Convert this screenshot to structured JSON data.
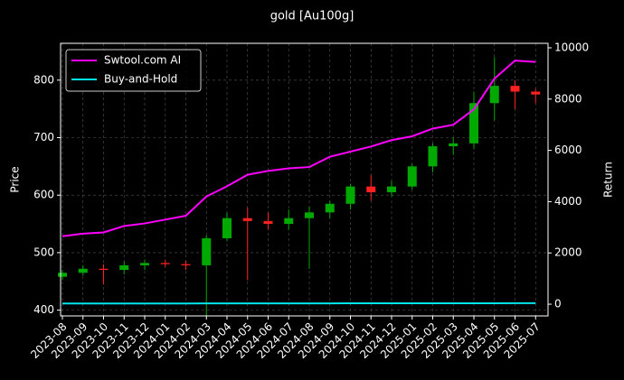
{
  "chart_data": {
    "type": "candlestick",
    "title": "gold [Au100g]",
    "y_label": "Price",
    "y2_label": "Return",
    "x": [
      "2023-08",
      "2023-09",
      "2023-10",
      "2023-11",
      "2023-12",
      "2024-01",
      "2024-02",
      "2024-03",
      "2024-04",
      "2024-05",
      "2024-06",
      "2024-07",
      "2024-08",
      "2024-09",
      "2024-10",
      "2024-11",
      "2024-12",
      "2025-01",
      "2025-02",
      "2025-03",
      "2025-04",
      "2025-05",
      "2025-06",
      "2025-07"
    ],
    "open": [
      458,
      465,
      472,
      470,
      478,
      482,
      480,
      478,
      525,
      560,
      555,
      550,
      560,
      570,
      585,
      615,
      605,
      615,
      650,
      685,
      690,
      760,
      790,
      780
    ],
    "high": [
      470,
      478,
      480,
      485,
      488,
      488,
      486,
      530,
      570,
      578,
      570,
      575,
      580,
      590,
      620,
      635,
      625,
      655,
      690,
      700,
      780,
      840,
      800,
      785
    ],
    "low": [
      452,
      460,
      445,
      462,
      470,
      475,
      470,
      390,
      520,
      452,
      540,
      540,
      472,
      560,
      575,
      590,
      598,
      610,
      640,
      670,
      680,
      730,
      750,
      760
    ],
    "close": [
      465,
      472,
      470,
      478,
      482,
      480,
      478,
      525,
      560,
      555,
      550,
      560,
      570,
      585,
      615,
      605,
      615,
      650,
      685,
      690,
      760,
      790,
      780,
      775
    ],
    "up_color": "#00aa00",
    "down_color": "#ff2020",
    "series": [
      {
        "name": "Swtool.com AI",
        "color": "#ff00ff",
        "axis": "y2",
        "values": [
          2650,
          2750,
          2800,
          3050,
          3150,
          3300,
          3450,
          4200,
          4600,
          5050,
          5200,
          5300,
          5350,
          5750,
          5950,
          6150,
          6400,
          6550,
          6850,
          7000,
          7600,
          8800,
          9500,
          9450
        ]
      },
      {
        "name": "Buy-and-Hold",
        "color": "#00e5ee",
        "axis": "y2",
        "values": [
          28,
          29,
          29,
          30,
          30,
          30,
          30,
          31,
          32,
          33,
          33,
          33,
          34,
          34,
          35,
          35,
          35,
          36,
          37,
          37,
          38,
          39,
          40,
          40
        ]
      }
    ],
    "ylim": [
      390,
      864
    ],
    "yticks": [
      400,
      500,
      600,
      700,
      800
    ],
    "y2lim": [
      -456,
      10175
    ],
    "y2ticks": [
      0,
      2000,
      4000,
      6000,
      8000,
      10000
    ],
    "grid": true,
    "legend": "upper left"
  }
}
